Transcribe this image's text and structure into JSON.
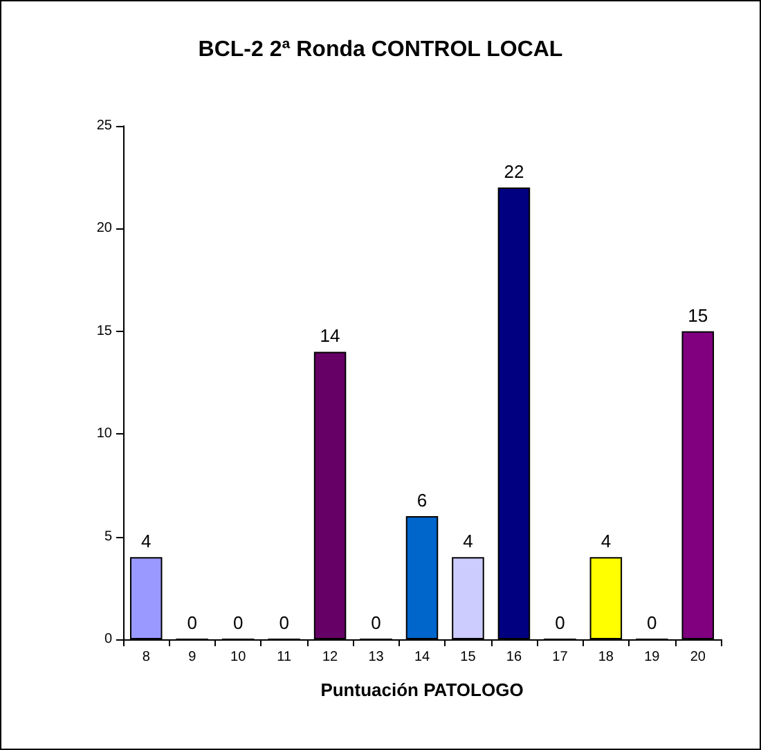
{
  "chart_data": {
    "type": "bar",
    "title": "BCL-2 2ª Ronda CONTROL LOCAL",
    "xlabel": "Puntuación PATOLOGO",
    "categories": [
      "8",
      "9",
      "10",
      "11",
      "12",
      "13",
      "14",
      "15",
      "16",
      "17",
      "18",
      "19",
      "20"
    ],
    "values": [
      4,
      0,
      0,
      0,
      14,
      0,
      6,
      4,
      22,
      0,
      4,
      0,
      15
    ],
    "colors": [
      "#9999ff",
      "#9999ff",
      "#9999ff",
      "#9999ff",
      "#660066",
      "#9999ff",
      "#0066cc",
      "#ccccff",
      "#000080",
      "#9999ff",
      "#ffff00",
      "#9999ff",
      "#800080"
    ],
    "ylim": [
      0,
      25
    ],
    "yticks": [
      0,
      5,
      10,
      15,
      20,
      25
    ],
    "grid": false,
    "data_labels": true
  }
}
